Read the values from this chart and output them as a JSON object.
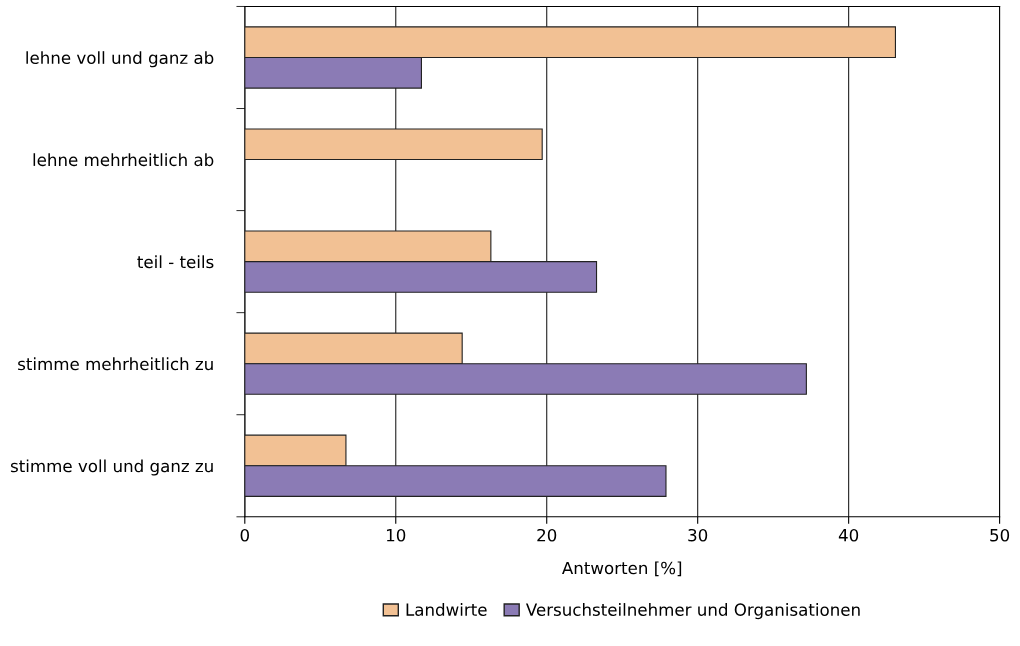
{
  "chart_data": {
    "type": "bar",
    "orientation": "horizontal",
    "xlabel": "Antworten [%]",
    "categories": [
      "lehne voll und ganz ab",
      "lehne mehrheitlich ab",
      "teil - teils",
      "stimme mehrheitlich zu",
      "stimme voll und ganz zu"
    ],
    "series": [
      {
        "name": "Landwirte",
        "color": "#f2c194",
        "values": [
          43.1,
          19.7,
          16.3,
          14.4,
          6.7
        ]
      },
      {
        "name": "Versuchsteilnehmer und Organisationen",
        "color": "#8b7bb5",
        "values": [
          11.7,
          null,
          23.3,
          37.2,
          27.9
        ]
      }
    ],
    "xlim": [
      0,
      50
    ],
    "xticks": [
      0,
      10,
      20,
      30,
      40,
      50
    ],
    "grid": "x",
    "legend": "bottom"
  }
}
